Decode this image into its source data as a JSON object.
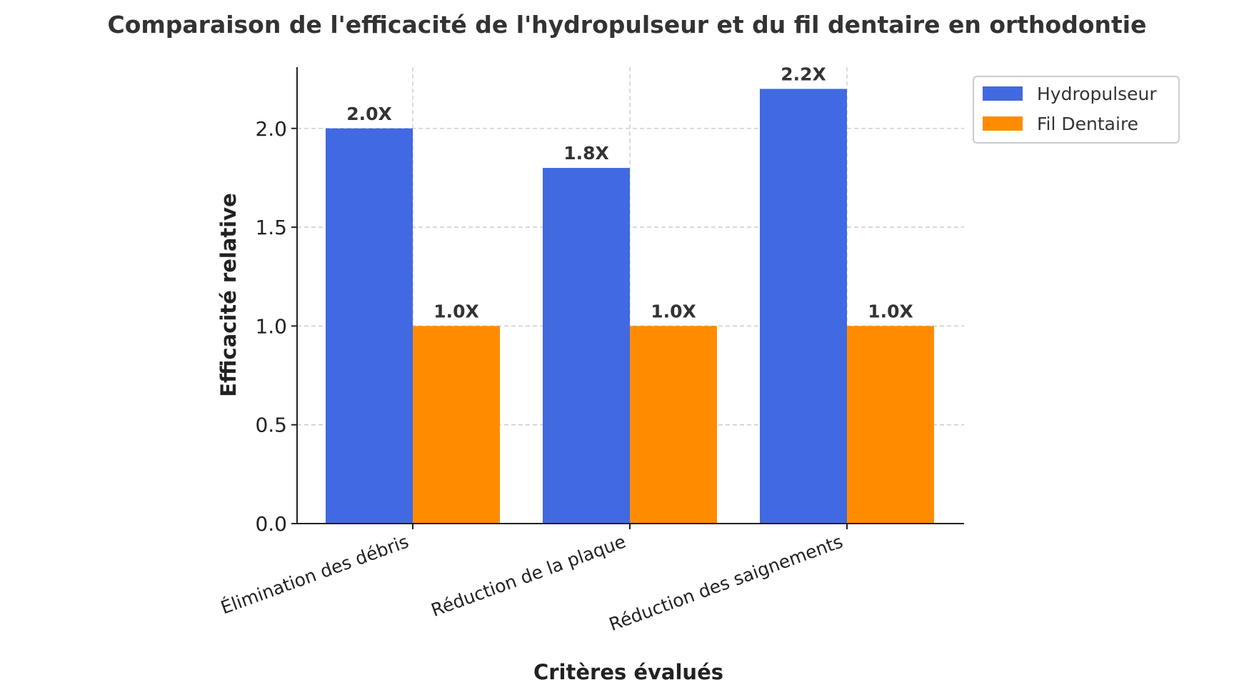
{
  "chart_data": {
    "type": "bar",
    "title": "Comparaison de l'efficacité de l'hydropulseur et du fil dentaire en orthodontie",
    "xlabel": "Critères évalués",
    "ylabel": "Efficacité relative",
    "categories": [
      "Élimination des débris",
      "Réduction de la plaque",
      "Réduction des saignements"
    ],
    "series": [
      {
        "name": "Hydropulseur",
        "color": "#4169E1",
        "values": [
          2.0,
          1.8,
          2.2
        ],
        "labels": [
          "2.0X",
          "1.8X",
          "2.2X"
        ]
      },
      {
        "name": "Fil Dentaire",
        "color": "#FF8C00",
        "values": [
          1.0,
          1.0,
          1.0
        ],
        "labels": [
          "1.0X",
          "1.0X",
          "1.0X"
        ]
      }
    ],
    "ylim": [
      0,
      2.31
    ],
    "yticks": [
      0.0,
      0.5,
      1.0,
      1.5,
      2.0
    ],
    "ytick_labels": [
      "0.0",
      "0.5",
      "1.0",
      "1.5",
      "2.0"
    ],
    "grid": true,
    "legend_position": "outside-top-right"
  }
}
